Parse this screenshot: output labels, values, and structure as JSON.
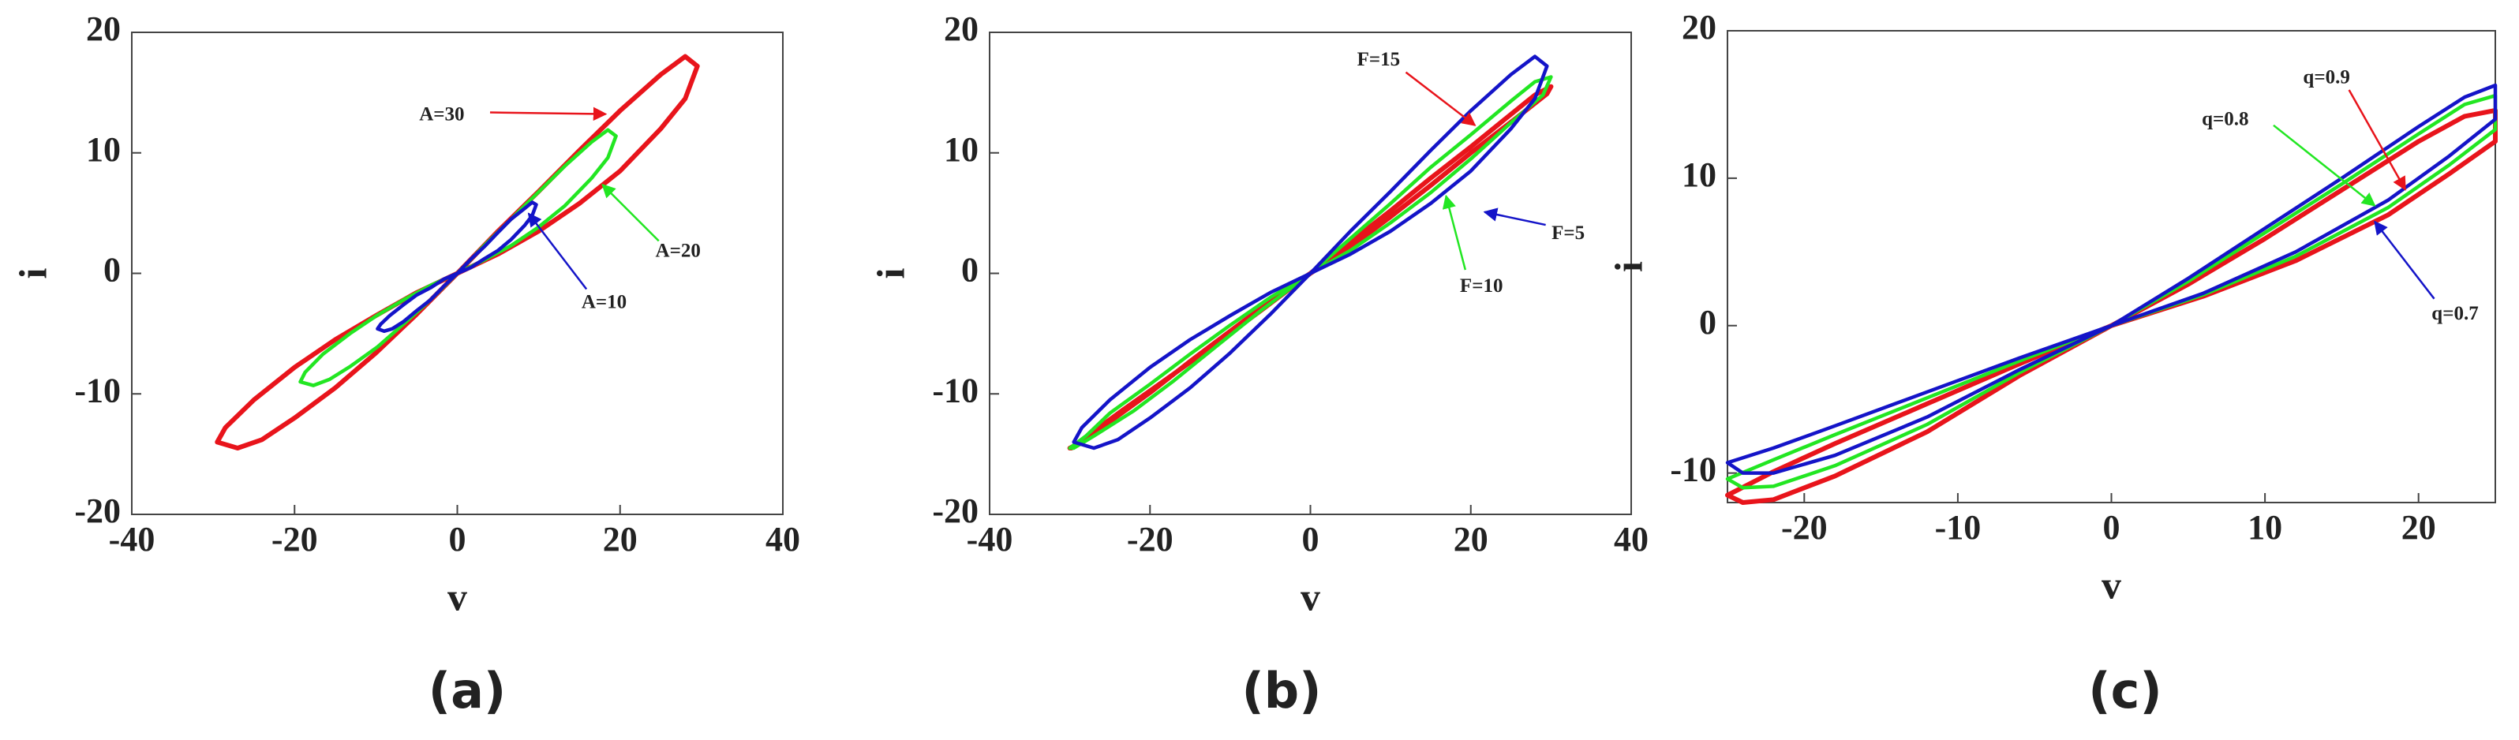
{
  "chart_data": [
    {
      "type": "line",
      "label": "(a)",
      "xlabel": "v",
      "ylabel": "i",
      "xlim": [
        -40,
        40
      ],
      "ylim": [
        -20,
        20
      ],
      "xticks": [
        -40,
        -20,
        0,
        20,
        40
      ],
      "yticks": [
        -20,
        -10,
        0,
        10,
        20
      ],
      "series": [
        {
          "name": "A=30",
          "color": "#e8141b",
          "x": [
            0,
            5,
            10,
            15,
            20,
            25,
            28,
            29.5,
            28,
            25,
            20,
            15,
            10,
            5,
            0,
            -5,
            -10,
            -15,
            -20,
            -25,
            -28.5,
            -29.5,
            -27,
            -24,
            -20,
            -15,
            -10,
            -5,
            0
          ],
          "values": [
            0,
            3.5,
            6.8,
            10.2,
            13.5,
            16.5,
            18,
            17.2,
            14.5,
            12,
            8.5,
            5.8,
            3.5,
            1.6,
            0,
            -1.6,
            -3.5,
            -5.5,
            -7.8,
            -10.5,
            -12.8,
            -14,
            -14.5,
            -13.8,
            -12,
            -9.5,
            -6.6,
            -3.4,
            0
          ]
        },
        {
          "name": "A=20",
          "color": "#22e622",
          "x": [
            0,
            3.3,
            6.6,
            9.9,
            13.2,
            16.5,
            18.5,
            19.5,
            18.5,
            16.5,
            13.2,
            9.9,
            6.6,
            3.3,
            0,
            -3.3,
            -6.6,
            -9.9,
            -13.2,
            -16.5,
            -18.7,
            -19.3,
            -17.7,
            -15.7,
            -13.1,
            -9.8,
            -6.6,
            -3.3,
            0
          ],
          "values": [
            0,
            2.3,
            4.5,
            6.7,
            8.9,
            10.9,
            11.9,
            11.4,
            9.6,
            7.9,
            5.6,
            3.8,
            2.3,
            1.1,
            0,
            -1,
            -2.2,
            -3.5,
            -5,
            -6.7,
            -8.2,
            -9,
            -9.3,
            -8.8,
            -7.7,
            -6.1,
            -4.2,
            -2.2,
            0
          ]
        },
        {
          "name": "A=10",
          "color": "#1414c8",
          "x": [
            0,
            1.7,
            3.3,
            5,
            6.6,
            8.3,
            9.2,
            9.7,
            9.2,
            8.3,
            6.6,
            5,
            3.3,
            1.7,
            0,
            -1.7,
            -3.3,
            -5,
            -6.6,
            -8.3,
            -9.4,
            -9.8,
            -9,
            -8,
            -6.6,
            -5,
            -3.3,
            -1.7,
            0
          ],
          "values": [
            0,
            1.2,
            2.2,
            3.4,
            4.5,
            5.4,
            5.9,
            5.7,
            4.8,
            4,
            2.8,
            1.9,
            1.2,
            0.5,
            0,
            -0.5,
            -1.2,
            -1.8,
            -2.6,
            -3.5,
            -4.2,
            -4.6,
            -4.8,
            -4.6,
            -4,
            -3.1,
            -2.2,
            -1.1,
            0
          ]
        }
      ]
    },
    {
      "type": "line",
      "label": "(b)",
      "xlabel": "v",
      "ylabel": "i",
      "xlim": [
        -40,
        40
      ],
      "ylim": [
        -20,
        20
      ],
      "xticks": [
        -40,
        -20,
        0,
        20,
        40
      ],
      "yticks": [
        -20,
        -10,
        0,
        10,
        20
      ],
      "series": [
        {
          "name": "F=15",
          "color": "#e8141b",
          "x": [
            0,
            5,
            10,
            15,
            20,
            25,
            28,
            30,
            29.5,
            25.5,
            20,
            15,
            10,
            5,
            0,
            -5,
            -10,
            -15,
            -20,
            -25,
            -28,
            -30,
            -29.8,
            -28,
            -23.5,
            -18,
            -12.5,
            -6,
            0
          ],
          "values": [
            0,
            2.6,
            5.2,
            7.9,
            10.5,
            13.2,
            14.8,
            15.5,
            14.9,
            12.8,
            10,
            7.3,
            4.7,
            2.2,
            0,
            -2.3,
            -4.8,
            -7.3,
            -9.9,
            -12.3,
            -13.8,
            -14.5,
            -14.5,
            -13.6,
            -11.4,
            -8.8,
            -6.2,
            -3,
            0
          ]
        },
        {
          "name": "F=10",
          "color": "#22e622",
          "x": [
            0,
            5,
            10,
            15,
            20,
            25,
            28,
            30,
            29,
            25,
            20,
            15,
            10,
            5,
            0,
            -5,
            -10,
            -15,
            -20,
            -25,
            -28,
            -30,
            -29.5,
            -27,
            -22,
            -17,
            -12,
            -6,
            0
          ],
          "values": [
            0,
            2.9,
            5.8,
            8.8,
            11.5,
            14.3,
            15.9,
            16.3,
            14.8,
            12.5,
            9.5,
            6.7,
            4.2,
            1.9,
            0,
            -2,
            -4.3,
            -6.7,
            -9.2,
            -11.6,
            -13.5,
            -14.5,
            -14.5,
            -13.5,
            -11.4,
            -8.9,
            -6.2,
            -3,
            0
          ]
        },
        {
          "name": "F=5",
          "color": "#1414c8",
          "x": [
            0,
            5,
            10,
            15,
            20,
            25,
            28,
            29.5,
            28,
            25,
            20,
            15,
            10,
            5,
            0,
            -5,
            -10,
            -15,
            -20,
            -25,
            -28.5,
            -29.5,
            -27,
            -24,
            -20,
            -15,
            -10,
            -5,
            0
          ],
          "values": [
            0,
            3.5,
            6.8,
            10.2,
            13.5,
            16.5,
            18,
            17.2,
            14.5,
            12,
            8.5,
            5.8,
            3.5,
            1.6,
            0,
            -1.6,
            -3.5,
            -5.5,
            -7.8,
            -10.5,
            -12.8,
            -14,
            -14.5,
            -13.8,
            -12,
            -9.5,
            -6.6,
            -3.4,
            0
          ]
        }
      ]
    },
    {
      "type": "line",
      "label": "(c)",
      "xlabel": "v",
      "ylabel": "i",
      "xlim": [
        -25,
        25
      ],
      "ylim": [
        -12,
        20
      ],
      "xticks": [
        -20,
        -10,
        0,
        10,
        20
      ],
      "yticks": [
        -10,
        0,
        10,
        20
      ],
      "series": [
        {
          "name": "q=0.9",
          "color": "#e8141b",
          "x": [
            0,
            5,
            10,
            15,
            20,
            23,
            25,
            25,
            22,
            18,
            12,
            6,
            0,
            -6,
            -12,
            -18,
            -22,
            -25,
            -24,
            -22,
            -18,
            -12,
            -6,
            0
          ],
          "values": [
            0,
            2.8,
            5.9,
            9.2,
            12.5,
            14.2,
            14.6,
            12.5,
            10.3,
            7.5,
            4.4,
            2,
            0,
            -2.6,
            -5.3,
            -8,
            -9.9,
            -11.5,
            -12,
            -11.8,
            -10.2,
            -7.2,
            -3.4,
            0
          ]
        },
        {
          "name": "q=0.8",
          "color": "#22e622",
          "x": [
            0,
            5,
            10,
            15,
            20,
            23,
            25,
            25,
            22,
            18,
            12,
            6,
            0,
            -6,
            -12,
            -18,
            -22,
            -25,
            -24,
            -22,
            -18,
            -12,
            -6,
            0
          ],
          "values": [
            0,
            3,
            6.3,
            9.6,
            13,
            15,
            15.6,
            13.3,
            10.9,
            8,
            4.7,
            2.1,
            0,
            -2.4,
            -4.9,
            -7.4,
            -9.1,
            -10.4,
            -11,
            -10.9,
            -9.5,
            -6.7,
            -3.2,
            0
          ]
        },
        {
          "name": "q=0.7",
          "color": "#1414c8",
          "x": [
            0,
            5,
            10,
            15,
            20,
            23,
            25,
            25,
            22,
            18,
            12,
            6,
            0,
            -6,
            -12,
            -18,
            -22,
            -25,
            -24,
            -22,
            -18,
            -12,
            -6,
            0
          ],
          "values": [
            0,
            3.2,
            6.6,
            10,
            13.5,
            15.5,
            16.3,
            14,
            11.5,
            8.5,
            5,
            2.2,
            0,
            -2.2,
            -4.5,
            -6.8,
            -8.3,
            -9.3,
            -10,
            -10,
            -8.8,
            -6.2,
            -3,
            0
          ]
        }
      ]
    }
  ]
}
